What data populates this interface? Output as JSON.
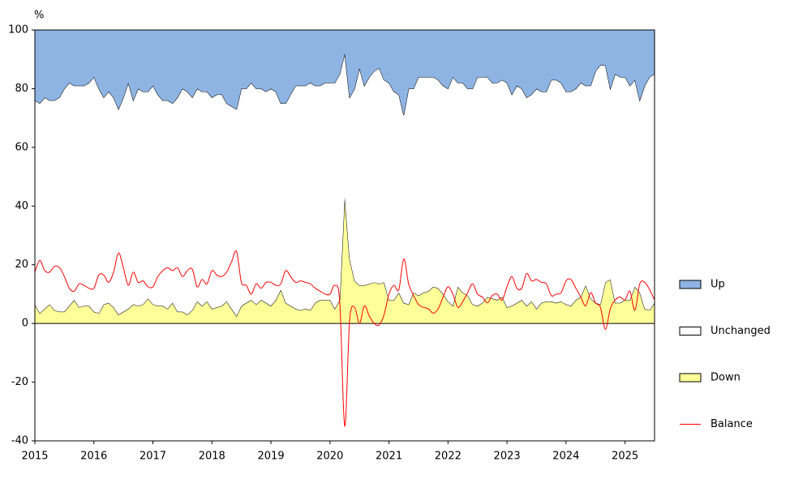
{
  "chart_data": {
    "type": "area",
    "y_unit_label": "%",
    "stacked": true,
    "x": [
      2015,
      2015.083,
      2015.167,
      2015.25,
      2015.333,
      2015.417,
      2015.5,
      2015.583,
      2015.667,
      2015.75,
      2015.833,
      2015.917,
      2016,
      2016.083,
      2016.167,
      2016.25,
      2016.333,
      2016.417,
      2016.5,
      2016.583,
      2016.667,
      2016.75,
      2016.833,
      2016.917,
      2017,
      2017.083,
      2017.167,
      2017.25,
      2017.333,
      2017.417,
      2017.5,
      2017.583,
      2017.667,
      2017.75,
      2017.833,
      2017.917,
      2018,
      2018.083,
      2018.167,
      2018.25,
      2018.333,
      2018.417,
      2018.5,
      2018.583,
      2018.667,
      2018.75,
      2018.833,
      2018.917,
      2019,
      2019.083,
      2019.167,
      2019.25,
      2019.333,
      2019.417,
      2019.5,
      2019.583,
      2019.667,
      2019.75,
      2019.833,
      2019.917,
      2020,
      2020.083,
      2020.167,
      2020.25,
      2020.333,
      2020.417,
      2020.5,
      2020.583,
      2020.667,
      2020.75,
      2020.833,
      2020.917,
      2021,
      2021.083,
      2021.167,
      2021.25,
      2021.333,
      2021.417,
      2021.5,
      2021.583,
      2021.667,
      2021.75,
      2021.833,
      2021.917,
      2022,
      2022.083,
      2022.167,
      2022.25,
      2022.333,
      2022.417,
      2022.5,
      2022.583,
      2022.667,
      2022.75,
      2022.833,
      2022.917,
      2023,
      2023.083,
      2023.167,
      2023.25,
      2023.333,
      2023.417,
      2023.5,
      2023.583,
      2023.667,
      2023.75,
      2023.833,
      2023.917,
      2024,
      2024.083,
      2024.167,
      2024.25,
      2024.333,
      2024.417,
      2024.5,
      2024.583,
      2024.667,
      2024.75,
      2024.833,
      2024.917,
      2025,
      2025.083,
      2025.167,
      2025.25,
      2025.333,
      2025.417,
      2025.5
    ],
    "series": [
      {
        "name": "Up",
        "color": "#8eb4e3",
        "values": [
          24,
          25,
          23,
          24,
          24,
          23,
          20,
          18,
          19,
          19,
          19,
          18,
          16,
          20,
          23,
          21,
          23,
          27,
          23,
          18,
          24,
          20,
          21,
          21,
          19,
          22,
          24,
          24,
          25,
          23,
          20,
          21,
          23,
          20,
          21,
          21,
          23,
          22,
          22,
          25,
          26,
          27,
          20,
          20,
          18,
          20,
          20,
          21,
          20,
          21,
          25,
          25,
          22,
          19,
          19,
          19,
          18,
          19,
          19,
          18,
          18,
          18,
          15,
          8,
          23,
          20,
          13,
          19,
          16,
          14,
          13,
          17,
          18,
          21,
          22,
          29,
          20,
          20,
          16,
          16,
          16,
          16,
          17,
          19,
          20,
          16,
          18,
          18,
          20,
          20,
          16,
          16,
          16,
          18,
          18,
          17,
          18,
          22,
          19,
          20,
          23,
          22,
          20,
          21,
          21,
          17,
          17,
          18,
          21,
          21,
          20,
          18,
          19,
          19,
          14,
          12,
          12,
          20,
          15,
          16,
          16,
          19,
          17,
          24,
          19,
          16,
          15
        ]
      },
      {
        "name": "Unchanged",
        "color": "#ffffff",
        "values": [
          69.5,
          71.5,
          72,
          69.5,
          71.5,
          73,
          76,
          76,
          73,
          75.5,
          75,
          76,
          80,
          76.5,
          70.5,
          72,
          71.5,
          70,
          73,
          77,
          69.5,
          74,
          72.5,
          70.5,
          74.5,
          72,
          70,
          71,
          68,
          73,
          76,
          76,
          72.5,
          72.5,
          73,
          71.5,
          72,
          72.5,
          72,
          67.5,
          69,
          70.5,
          74,
          73,
          74,
          73.5,
          72,
          72,
          74,
          71,
          63.5,
          68,
          72,
          76,
          76.5,
          76,
          77.5,
          74,
          73,
          74,
          74,
          77,
          77,
          49,
          55,
          65.5,
          74,
          68,
          70.5,
          72,
          73.5,
          69,
          74,
          71,
          67.5,
          64,
          73.5,
          69.5,
          74.5,
          73.5,
          73,
          71.5,
          71,
          71,
          72.5,
          78,
          69.5,
          71.5,
          70.5,
          73.5,
          78,
          77,
          75,
          73.5,
          74,
          74,
          76.5,
          72,
          74,
          72,
          71,
          70.5,
          75,
          72,
          71.5,
          75.5,
          76,
          74.5,
          72.5,
          73,
          72,
          73,
          68,
          72.5,
          79,
          81.5,
          74,
          65,
          78,
          77,
          76,
          73,
          70.5,
          65.5,
          76,
          79.5,
          78
        ]
      },
      {
        "name": "Down",
        "color": "#ffff99",
        "values": [
          6.5,
          3.5,
          5,
          6.5,
          4.5,
          4,
          4,
          6,
          8,
          5.5,
          6,
          6,
          4,
          3.5,
          6.5,
          7,
          5.5,
          3,
          4,
          5,
          6.5,
          6,
          6.5,
          8.5,
          6.5,
          6,
          6,
          5,
          7,
          4,
          4,
          3,
          4.5,
          7.5,
          6,
          7.5,
          5,
          5.5,
          6,
          7.5,
          5,
          2.5,
          6,
          7,
          8,
          6.5,
          8,
          7,
          6,
          8,
          11.5,
          7,
          6,
          5,
          4.5,
          5,
          4.5,
          7,
          8,
          8,
          8,
          5,
          8,
          43,
          22,
          14.5,
          13,
          13,
          13.5,
          14,
          13.5,
          14,
          8,
          8,
          10.5,
          7,
          6.5,
          10.5,
          9.5,
          10.5,
          11,
          12.5,
          12,
          10,
          7.5,
          6,
          12.5,
          10.5,
          9.5,
          6.5,
          6,
          7,
          9,
          8.5,
          8,
          9,
          5.5,
          6,
          7,
          8,
          6,
          7.5,
          5,
          7,
          7.5,
          7.5,
          7,
          7.5,
          6.5,
          6,
          8,
          9,
          13,
          8.5,
          7,
          6.5,
          14,
          15,
          7,
          7,
          8,
          8,
          12.5,
          10.5,
          5,
          4.5,
          7
        ]
      },
      {
        "name": "Balance",
        "type": "line",
        "color": "#ff0000",
        "values": [
          17.5,
          21.5,
          18,
          17.5,
          19.5,
          19,
          16,
          12,
          11,
          13.5,
          13,
          12,
          12,
          16.5,
          16.5,
          14,
          17.5,
          24,
          19,
          13,
          17.5,
          14,
          14.5,
          12.5,
          12.5,
          16,
          18,
          19,
          18,
          19,
          16,
          18,
          18.5,
          12.5,
          15,
          13.5,
          18,
          16.5,
          16,
          17.5,
          21,
          24.5,
          14,
          13,
          10,
          13.5,
          12,
          14,
          14,
          13,
          13.5,
          18,
          16,
          14,
          14.5,
          14,
          13.5,
          12,
          11,
          10,
          10,
          13,
          7,
          -35,
          1,
          5.5,
          0,
          6,
          2.5,
          0,
          -0.5,
          3,
          10,
          13,
          11.5,
          22,
          13.5,
          9.5,
          6.5,
          5.5,
          5,
          3.5,
          5,
          9,
          12.5,
          10,
          5.5,
          7.5,
          10.5,
          13.5,
          10,
          9,
          7,
          9.5,
          10,
          8,
          12.5,
          16,
          12,
          12,
          17,
          14.5,
          15,
          14,
          13.5,
          9.5,
          10,
          10.5,
          14.5,
          15,
          12,
          9,
          6,
          10.5,
          7,
          5.5,
          -2,
          5,
          8,
          9,
          8,
          11,
          4.5,
          13.5,
          14,
          11.5,
          8
        ]
      }
    ],
    "xlim": [
      2015,
      2025.5
    ],
    "xticks": [
      2015,
      2016,
      2017,
      2018,
      2019,
      2020,
      2021,
      2022,
      2023,
      2024,
      2025
    ],
    "ylim": [
      -40,
      100
    ],
    "yticks": [
      -40,
      -20,
      0,
      20,
      40,
      60,
      80,
      100
    ]
  }
}
